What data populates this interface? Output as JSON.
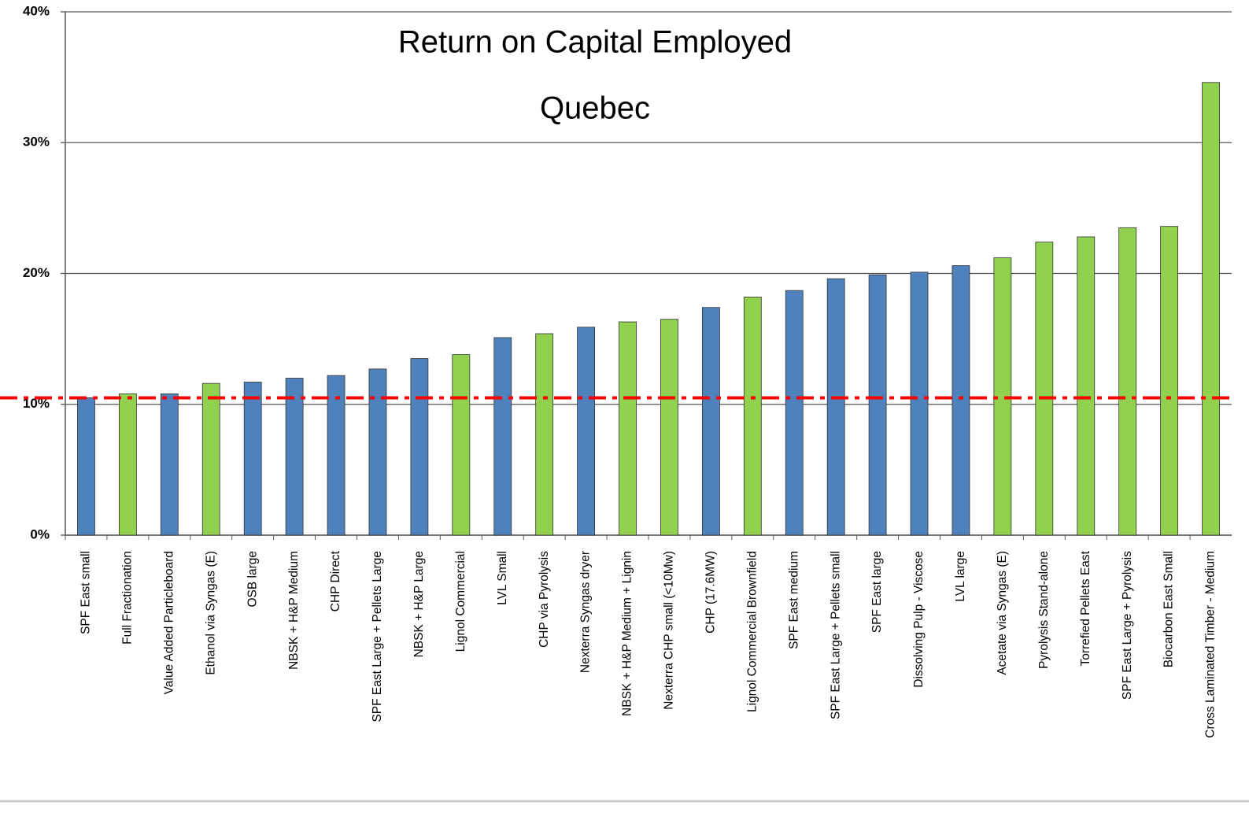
{
  "chart_data": {
    "type": "bar",
    "title": "Return on Capital Employed",
    "subtitle": "Quebec",
    "categories": [
      "SPF East small",
      "Full Fractionation",
      "Value Added Particleboard",
      "Ethanol via Syngas (E)",
      "OSB large",
      "NBSK + H&P Medium",
      "CHP Direct",
      "SPF East Large + Pellets Large",
      "NBSK + H&P Large",
      "Lignol Commercial",
      "LVL  Small",
      "CHP via Pyrolysis",
      "Nexterra Syngas dryer",
      "NBSK + H&P Medium + Lignin",
      "Nexterra CHP small (<10Mw)",
      "CHP (17.6MW)",
      "Lignol Commercial Brownfield",
      "SPF East medium",
      "SPF East Large + Pellets small",
      "SPF East large",
      "Dissolving Pulp - Viscose",
      "LVL large",
      "Acetate via Syngas (E)",
      "Pyrolysis Stand-alone",
      "Torrefied Pellets East",
      "SPF East Large + Pyrolysis",
      "Biocarbon East Small",
      "Cross Laminated Timber - Medium"
    ],
    "values": [
      10.5,
      10.8,
      10.8,
      11.6,
      11.7,
      12.0,
      12.2,
      12.7,
      13.5,
      13.8,
      15.1,
      15.4,
      15.9,
      16.3,
      16.5,
      17.4,
      18.2,
      18.7,
      19.6,
      19.9,
      20.1,
      20.6,
      21.2,
      22.4,
      22.8,
      23.5,
      23.6,
      34.6
    ],
    "colors": [
      "#4f81bd",
      "#92d050",
      "#4f81bd",
      "#92d050",
      "#4f81bd",
      "#4f81bd",
      "#4f81bd",
      "#4f81bd",
      "#4f81bd",
      "#92d050",
      "#4f81bd",
      "#92d050",
      "#4f81bd",
      "#92d050",
      "#92d050",
      "#4f81bd",
      "#92d050",
      "#4f81bd",
      "#4f81bd",
      "#4f81bd",
      "#4f81bd",
      "#4f81bd",
      "#92d050",
      "#92d050",
      "#92d050",
      "#92d050",
      "#92d050",
      "#92d050"
    ],
    "ylim": [
      0,
      40
    ],
    "yticks": [
      {
        "value": 0,
        "label": "0%"
      },
      {
        "value": 10,
        "label": "10%"
      },
      {
        "value": 20,
        "label": "20%"
      },
      {
        "value": 30,
        "label": "30%"
      },
      {
        "value": 40,
        "label": "40%"
      }
    ],
    "grid": true,
    "reference_line": {
      "value": 10.5,
      "color": "#ff0000"
    }
  }
}
